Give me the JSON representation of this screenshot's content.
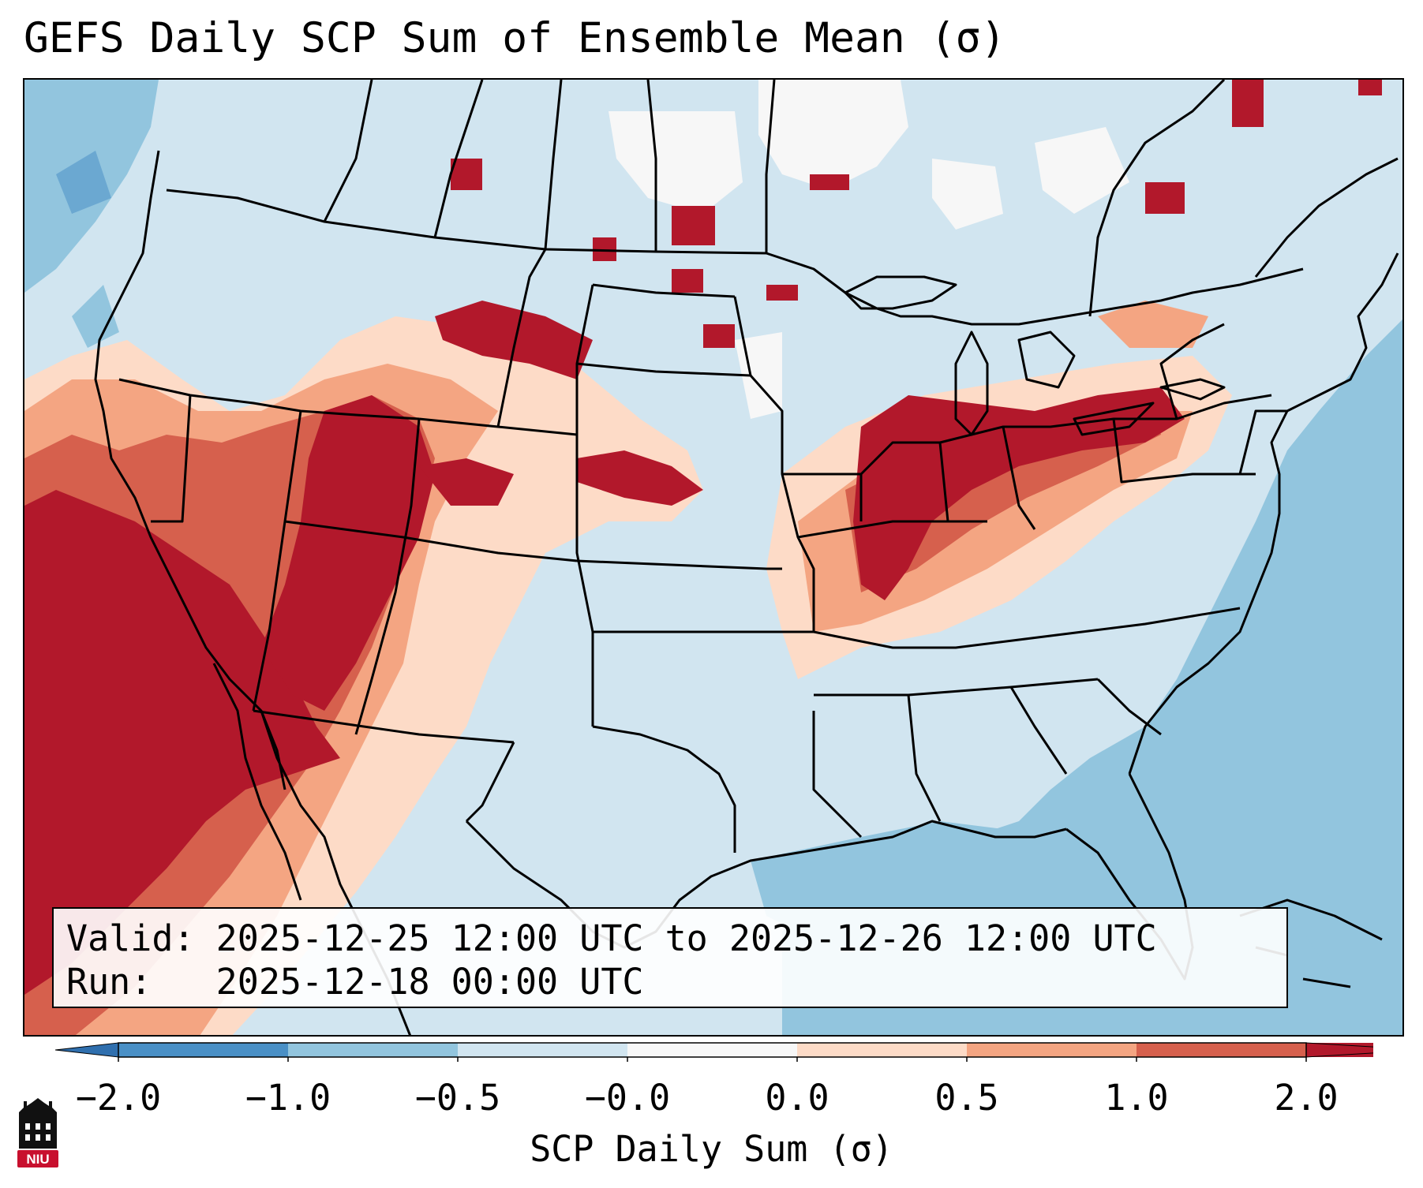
{
  "title": "GEFS Daily SCP Sum of Ensemble Mean (σ)",
  "info": {
    "valid_label": "Valid:",
    "valid_value": "2025-12-25 12:00 UTC to 2025-12-26 12:00 UTC",
    "run_label": "Run:",
    "run_value": "2025-12-18 00:00 UTC"
  },
  "colorbar": {
    "label": "SCP Daily Sum (σ)",
    "ticks": [
      "−2.0",
      "−1.0",
      "−0.5",
      "−0.0",
      "0.0",
      "0.5",
      "1.0",
      "2.0"
    ],
    "bins": [
      {
        "range": "-2.0 to -1.0",
        "color": "#4a90c6"
      },
      {
        "range": "-1.0 to -0.5",
        "color": "#92c5de"
      },
      {
        "range": "-0.5 to -0.0",
        "color": "#d1e5f0"
      },
      {
        "range": "-0.0 to 0.0",
        "color": "#f7f7f7"
      },
      {
        "range": "0.0 to 0.5",
        "color": "#fddbc7"
      },
      {
        "range": "0.5 to 1.0",
        "color": "#f4a582"
      },
      {
        "range": "1.0 to 2.0",
        "color": "#d6604d"
      },
      {
        "range": "over 2.0",
        "color": "#b2182b"
      }
    ],
    "extend_low_color": "#2f6fae",
    "extend_high_color": "#b2182b"
  },
  "map": {
    "region": "Contiguous United States",
    "ocean_color": "#92c5de",
    "background_color": "#d1e5f0",
    "high_color": "#b2182b",
    "mid_color": "#d6604d",
    "low_color": "#f4a582",
    "faint_color": "#fddbc7"
  },
  "logo": {
    "text": "NIU",
    "color": "#c8102e"
  }
}
